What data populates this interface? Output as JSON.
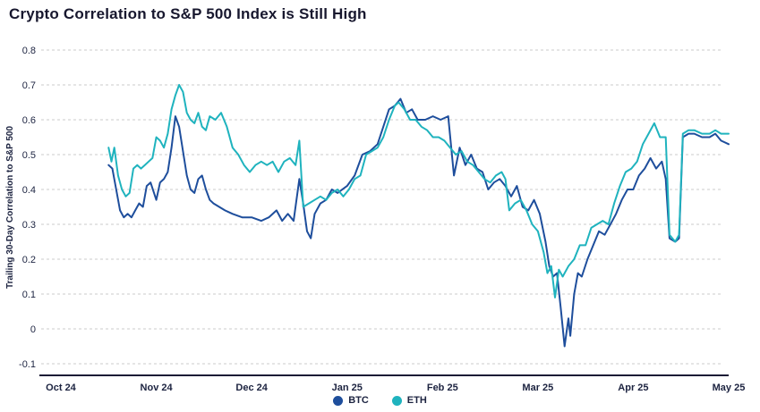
{
  "title": "Crypto Correlation to S&P 500 Index is Still High",
  "chart_data": {
    "type": "line",
    "title": "Crypto Correlation to S&P 500 Index is Still High",
    "xlabel": "",
    "ylabel": "Trailing 30-Day Correlation to S&P 500",
    "x_unit": "months since Oct 2024 (fractional)",
    "xlim_months": [
      0,
      7
    ],
    "ylim": [
      -0.1,
      0.8
    ],
    "grid": "dashed horizontal gridlines",
    "legend_position": "bottom-center",
    "grid_color": "#cbcbcb",
    "axis_color": "#1b1b35",
    "text_color": "#1c2340",
    "x_ticks": [
      {
        "pos": 0,
        "label": "Oct 24"
      },
      {
        "pos": 1,
        "label": "Nov 24"
      },
      {
        "pos": 2,
        "label": "Dec 24"
      },
      {
        "pos": 3,
        "label": "Jan 25"
      },
      {
        "pos": 4,
        "label": "Feb 25"
      },
      {
        "pos": 5,
        "label": "Mar 25"
      },
      {
        "pos": 6,
        "label": "Apr 25"
      },
      {
        "pos": 7,
        "label": "May 25"
      }
    ],
    "y_ticks": [
      {
        "v": 0.8,
        "label": "0.8"
      },
      {
        "v": 0.7,
        "label": "0.7"
      },
      {
        "v": 0.6,
        "label": "0.6"
      },
      {
        "v": 0.5,
        "label": "0.5"
      },
      {
        "v": 0.4,
        "label": "0.4"
      },
      {
        "v": 0.3,
        "label": "0.3"
      },
      {
        "v": 0.2,
        "label": "0.2"
      },
      {
        "v": 0.1,
        "label": "0.1"
      },
      {
        "v": 0.0,
        "label": "0"
      },
      {
        "v": -0.1,
        "label": "-0.1"
      }
    ],
    "series": [
      {
        "name": "BTC",
        "color": "#1e4e9c",
        "points": [
          [
            0.5,
            0.47
          ],
          [
            0.54,
            0.46
          ],
          [
            0.58,
            0.4
          ],
          [
            0.62,
            0.34
          ],
          [
            0.66,
            0.32
          ],
          [
            0.7,
            0.33
          ],
          [
            0.74,
            0.32
          ],
          [
            0.78,
            0.34
          ],
          [
            0.82,
            0.36
          ],
          [
            0.86,
            0.35
          ],
          [
            0.9,
            0.41
          ],
          [
            0.94,
            0.42
          ],
          [
            1.0,
            0.37
          ],
          [
            1.04,
            0.42
          ],
          [
            1.08,
            0.43
          ],
          [
            1.12,
            0.45
          ],
          [
            1.16,
            0.52
          ],
          [
            1.2,
            0.61
          ],
          [
            1.24,
            0.58
          ],
          [
            1.28,
            0.51
          ],
          [
            1.32,
            0.44
          ],
          [
            1.36,
            0.4
          ],
          [
            1.4,
            0.39
          ],
          [
            1.44,
            0.43
          ],
          [
            1.48,
            0.44
          ],
          [
            1.52,
            0.4
          ],
          [
            1.56,
            0.37
          ],
          [
            1.6,
            0.36
          ],
          [
            1.66,
            0.35
          ],
          [
            1.72,
            0.34
          ],
          [
            1.8,
            0.33
          ],
          [
            1.9,
            0.32
          ],
          [
            2.0,
            0.32
          ],
          [
            2.1,
            0.31
          ],
          [
            2.18,
            0.32
          ],
          [
            2.26,
            0.34
          ],
          [
            2.32,
            0.31
          ],
          [
            2.38,
            0.33
          ],
          [
            2.44,
            0.31
          ],
          [
            2.5,
            0.43
          ],
          [
            2.54,
            0.36
          ],
          [
            2.58,
            0.28
          ],
          [
            2.62,
            0.26
          ],
          [
            2.66,
            0.33
          ],
          [
            2.72,
            0.36
          ],
          [
            2.78,
            0.37
          ],
          [
            2.84,
            0.4
          ],
          [
            2.9,
            0.39
          ],
          [
            3.0,
            0.41
          ],
          [
            3.08,
            0.44
          ],
          [
            3.16,
            0.5
          ],
          [
            3.24,
            0.51
          ],
          [
            3.32,
            0.53
          ],
          [
            3.38,
            0.58
          ],
          [
            3.44,
            0.63
          ],
          [
            3.5,
            0.64
          ],
          [
            3.56,
            0.66
          ],
          [
            3.62,
            0.62
          ],
          [
            3.68,
            0.63
          ],
          [
            3.74,
            0.6
          ],
          [
            3.82,
            0.6
          ],
          [
            3.9,
            0.61
          ],
          [
            3.98,
            0.6
          ],
          [
            4.06,
            0.61
          ],
          [
            4.12,
            0.44
          ],
          [
            4.18,
            0.52
          ],
          [
            4.24,
            0.47
          ],
          [
            4.3,
            0.5
          ],
          [
            4.36,
            0.46
          ],
          [
            4.42,
            0.45
          ],
          [
            4.48,
            0.4
          ],
          [
            4.54,
            0.42
          ],
          [
            4.6,
            0.43
          ],
          [
            4.66,
            0.41
          ],
          [
            4.72,
            0.38
          ],
          [
            4.78,
            0.41
          ],
          [
            4.84,
            0.35
          ],
          [
            4.9,
            0.34
          ],
          [
            4.96,
            0.37
          ],
          [
            5.02,
            0.33
          ],
          [
            5.08,
            0.25
          ],
          [
            5.12,
            0.18
          ],
          [
            5.16,
            0.15
          ],
          [
            5.2,
            0.16
          ],
          [
            5.24,
            0.06
          ],
          [
            5.28,
            -0.05
          ],
          [
            5.32,
            0.03
          ],
          [
            5.34,
            -0.02
          ],
          [
            5.38,
            0.1
          ],
          [
            5.42,
            0.16
          ],
          [
            5.46,
            0.15
          ],
          [
            5.52,
            0.2
          ],
          [
            5.58,
            0.24
          ],
          [
            5.64,
            0.28
          ],
          [
            5.7,
            0.27
          ],
          [
            5.76,
            0.3
          ],
          [
            5.82,
            0.33
          ],
          [
            5.88,
            0.37
          ],
          [
            5.94,
            0.4
          ],
          [
            6.0,
            0.4
          ],
          [
            6.06,
            0.44
          ],
          [
            6.12,
            0.46
          ],
          [
            6.18,
            0.49
          ],
          [
            6.24,
            0.46
          ],
          [
            6.3,
            0.48
          ],
          [
            6.34,
            0.43
          ],
          [
            6.38,
            0.26
          ],
          [
            6.44,
            0.25
          ],
          [
            6.48,
            0.26
          ],
          [
            6.52,
            0.55
          ],
          [
            6.58,
            0.56
          ],
          [
            6.64,
            0.56
          ],
          [
            6.72,
            0.55
          ],
          [
            6.8,
            0.55
          ],
          [
            6.86,
            0.56
          ],
          [
            6.92,
            0.54
          ],
          [
            7.0,
            0.53
          ]
        ]
      },
      {
        "name": "ETH",
        "color": "#1fb3be",
        "points": [
          [
            0.5,
            0.52
          ],
          [
            0.53,
            0.48
          ],
          [
            0.56,
            0.52
          ],
          [
            0.6,
            0.44
          ],
          [
            0.64,
            0.4
          ],
          [
            0.68,
            0.38
          ],
          [
            0.72,
            0.39
          ],
          [
            0.76,
            0.46
          ],
          [
            0.8,
            0.47
          ],
          [
            0.84,
            0.46
          ],
          [
            0.88,
            0.47
          ],
          [
            0.92,
            0.48
          ],
          [
            0.96,
            0.49
          ],
          [
            1.0,
            0.55
          ],
          [
            1.04,
            0.54
          ],
          [
            1.08,
            0.52
          ],
          [
            1.12,
            0.56
          ],
          [
            1.16,
            0.63
          ],
          [
            1.2,
            0.67
          ],
          [
            1.24,
            0.7
          ],
          [
            1.28,
            0.68
          ],
          [
            1.32,
            0.62
          ],
          [
            1.36,
            0.6
          ],
          [
            1.4,
            0.59
          ],
          [
            1.44,
            0.62
          ],
          [
            1.48,
            0.58
          ],
          [
            1.52,
            0.57
          ],
          [
            1.56,
            0.61
          ],
          [
            1.62,
            0.6
          ],
          [
            1.68,
            0.62
          ],
          [
            1.74,
            0.58
          ],
          [
            1.8,
            0.52
          ],
          [
            1.86,
            0.5
          ],
          [
            1.92,
            0.47
          ],
          [
            1.98,
            0.45
          ],
          [
            2.04,
            0.47
          ],
          [
            2.1,
            0.48
          ],
          [
            2.16,
            0.47
          ],
          [
            2.22,
            0.48
          ],
          [
            2.28,
            0.45
          ],
          [
            2.34,
            0.48
          ],
          [
            2.4,
            0.49
          ],
          [
            2.46,
            0.47
          ],
          [
            2.5,
            0.54
          ],
          [
            2.54,
            0.35
          ],
          [
            2.6,
            0.36
          ],
          [
            2.66,
            0.37
          ],
          [
            2.72,
            0.38
          ],
          [
            2.78,
            0.37
          ],
          [
            2.84,
            0.39
          ],
          [
            2.9,
            0.4
          ],
          [
            2.96,
            0.38
          ],
          [
            3.02,
            0.4
          ],
          [
            3.08,
            0.43
          ],
          [
            3.14,
            0.44
          ],
          [
            3.2,
            0.5
          ],
          [
            3.26,
            0.51
          ],
          [
            3.32,
            0.52
          ],
          [
            3.38,
            0.55
          ],
          [
            3.44,
            0.6
          ],
          [
            3.5,
            0.64
          ],
          [
            3.54,
            0.65
          ],
          [
            3.6,
            0.63
          ],
          [
            3.66,
            0.6
          ],
          [
            3.72,
            0.6
          ],
          [
            3.78,
            0.58
          ],
          [
            3.84,
            0.57
          ],
          [
            3.9,
            0.55
          ],
          [
            3.96,
            0.55
          ],
          [
            4.02,
            0.54
          ],
          [
            4.08,
            0.52
          ],
          [
            4.14,
            0.5
          ],
          [
            4.2,
            0.51
          ],
          [
            4.26,
            0.48
          ],
          [
            4.32,
            0.47
          ],
          [
            4.38,
            0.45
          ],
          [
            4.44,
            0.43
          ],
          [
            4.5,
            0.42
          ],
          [
            4.56,
            0.44
          ],
          [
            4.62,
            0.45
          ],
          [
            4.66,
            0.43
          ],
          [
            4.7,
            0.34
          ],
          [
            4.76,
            0.36
          ],
          [
            4.82,
            0.37
          ],
          [
            4.88,
            0.34
          ],
          [
            4.94,
            0.3
          ],
          [
            5.0,
            0.28
          ],
          [
            5.06,
            0.22
          ],
          [
            5.1,
            0.16
          ],
          [
            5.14,
            0.18
          ],
          [
            5.18,
            0.09
          ],
          [
            5.22,
            0.17
          ],
          [
            5.26,
            0.15
          ],
          [
            5.32,
            0.18
          ],
          [
            5.38,
            0.2
          ],
          [
            5.44,
            0.24
          ],
          [
            5.5,
            0.24
          ],
          [
            5.56,
            0.29
          ],
          [
            5.62,
            0.3
          ],
          [
            5.68,
            0.31
          ],
          [
            5.74,
            0.3
          ],
          [
            5.8,
            0.36
          ],
          [
            5.86,
            0.41
          ],
          [
            5.92,
            0.45
          ],
          [
            5.98,
            0.46
          ],
          [
            6.04,
            0.48
          ],
          [
            6.1,
            0.53
          ],
          [
            6.16,
            0.56
          ],
          [
            6.22,
            0.59
          ],
          [
            6.28,
            0.55
          ],
          [
            6.34,
            0.55
          ],
          [
            6.38,
            0.27
          ],
          [
            6.44,
            0.25
          ],
          [
            6.48,
            0.27
          ],
          [
            6.52,
            0.56
          ],
          [
            6.58,
            0.57
          ],
          [
            6.64,
            0.57
          ],
          [
            6.72,
            0.56
          ],
          [
            6.8,
            0.56
          ],
          [
            6.86,
            0.57
          ],
          [
            6.92,
            0.56
          ],
          [
            7.0,
            0.56
          ]
        ]
      }
    ]
  }
}
